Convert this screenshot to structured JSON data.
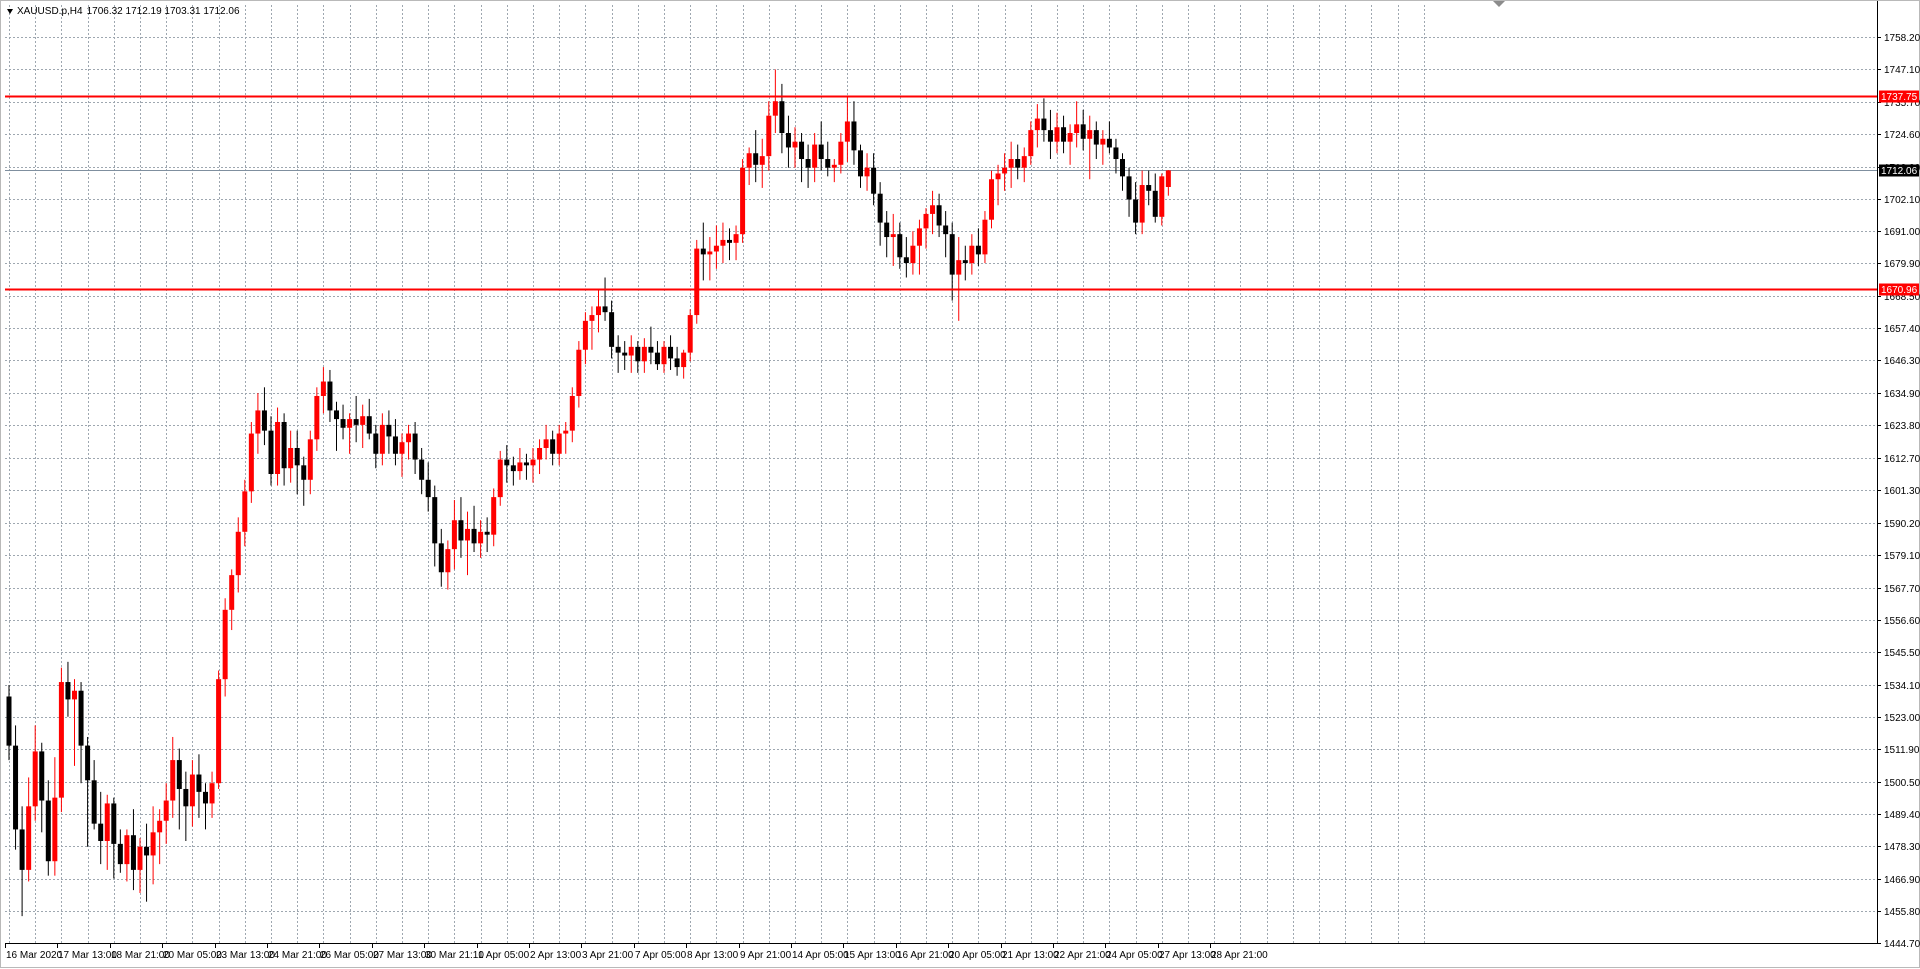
{
  "header": {
    "symbol": "XAUUSD.p,H4",
    "ohlc": "1706.32 1712.19 1703.31 1712.06"
  },
  "colors": {
    "background": "#ffffff",
    "grid": "#9ea7b0",
    "bull": "#ff0000",
    "bear": "#000000",
    "level_line": "#ff0000",
    "price_line": "#7f8f9f"
  },
  "chart_data": {
    "type": "candlestick",
    "grid": true,
    "ylim": [
      1444.7,
      1769.3
    ],
    "y_ticks": [
      "1758.20",
      "1747.10",
      "1735.70",
      "1724.60",
      "1713.20",
      "1702.10",
      "1691.00",
      "1679.90",
      "1668.50",
      "1657.40",
      "1646.30",
      "1634.90",
      "1623.80",
      "1612.70",
      "1601.30",
      "1590.20",
      "1579.10",
      "1567.70",
      "1556.60",
      "1545.50",
      "1534.10",
      "1523.00",
      "1511.90",
      "1500.50",
      "1489.40",
      "1478.30",
      "1466.90",
      "1455.80",
      "1444.70"
    ],
    "x_ticks": [
      "16 Mar 2020",
      "17 Mar 13:00",
      "18 Mar 21:00",
      "20 Mar 05:00",
      "23 Mar 13:00",
      "24 Mar 21:00",
      "26 Mar 05:00",
      "27 Mar 13:00",
      "30 Mar 21:10",
      "1 Apr 05:00",
      "2 Apr 13:00",
      "3 Apr 21:00",
      "7 Apr 05:00",
      "8 Apr 13:00",
      "9 Apr 21:00",
      "14 Apr 05:00",
      "15 Apr 13:00",
      "16 Apr 21:00",
      "20 Apr 05:00",
      "21 Apr 13:00",
      "22 Apr 21:00",
      "24 Apr 05:00",
      "27 Apr 13:00",
      "28 Apr 21:00"
    ],
    "levels": [
      {
        "price": 1737.75,
        "label": "1737.75",
        "color": "#ff0000"
      },
      {
        "price": 1670.96,
        "label": "1670.96",
        "color": "#ff0000"
      }
    ],
    "current_price": {
      "price": 1712.06,
      "label": "1712.06"
    },
    "candles": [
      [
        1530,
        1534,
        1508,
        1513
      ],
      [
        1513,
        1520,
        1477,
        1484
      ],
      [
        1484,
        1492,
        1454,
        1470
      ],
      [
        1470,
        1502,
        1466,
        1492
      ],
      [
        1492,
        1520,
        1487,
        1511
      ],
      [
        1511,
        1514,
        1483,
        1494
      ],
      [
        1494,
        1501,
        1468,
        1473
      ],
      [
        1473,
        1509,
        1468,
        1495
      ],
      [
        1495,
        1540,
        1490,
        1535
      ],
      [
        1535,
        1542,
        1523,
        1529
      ],
      [
        1529,
        1536,
        1506,
        1532
      ],
      [
        1532,
        1535,
        1500,
        1513
      ],
      [
        1513,
        1516,
        1478,
        1501
      ],
      [
        1501,
        1508,
        1484,
        1486
      ],
      [
        1486,
        1497,
        1472,
        1480
      ],
      [
        1480,
        1496,
        1470,
        1493
      ],
      [
        1493,
        1495,
        1467,
        1479
      ],
      [
        1479,
        1484,
        1469,
        1472
      ],
      [
        1472,
        1484,
        1466,
        1482
      ],
      [
        1482,
        1491,
        1463,
        1470
      ],
      [
        1470,
        1481,
        1462,
        1478
      ],
      [
        1478,
        1486,
        1459,
        1475
      ],
      [
        1475,
        1492,
        1465,
        1483
      ],
      [
        1483,
        1491,
        1472,
        1487
      ],
      [
        1487,
        1500,
        1479,
        1494
      ],
      [
        1494,
        1516,
        1488,
        1508
      ],
      [
        1508,
        1512,
        1484,
        1498
      ],
      [
        1498,
        1504,
        1480,
        1492
      ],
      [
        1492,
        1508,
        1485,
        1503
      ],
      [
        1503,
        1510,
        1488,
        1497
      ],
      [
        1497,
        1500,
        1484,
        1493
      ],
      [
        1493,
        1504,
        1488,
        1500
      ],
      [
        1500,
        1539,
        1498,
        1536
      ],
      [
        1536,
        1564,
        1530,
        1560
      ],
      [
        1560,
        1574,
        1553,
        1572
      ],
      [
        1572,
        1592,
        1566,
        1587
      ],
      [
        1587,
        1605,
        1582,
        1601
      ],
      [
        1601,
        1625,
        1597,
        1621
      ],
      [
        1621,
        1635,
        1614,
        1629
      ],
      [
        1629,
        1637,
        1617,
        1622
      ],
      [
        1622,
        1627,
        1603,
        1607
      ],
      [
        1607,
        1630,
        1603,
        1625
      ],
      [
        1625,
        1628,
        1603,
        1609
      ],
      [
        1609,
        1622,
        1604,
        1616
      ],
      [
        1616,
        1622,
        1600,
        1610
      ],
      [
        1610,
        1613,
        1596,
        1605
      ],
      [
        1605,
        1622,
        1600,
        1619
      ],
      [
        1619,
        1637,
        1615,
        1634
      ],
      [
        1634,
        1644,
        1628,
        1639
      ],
      [
        1639,
        1643,
        1625,
        1629
      ],
      [
        1629,
        1632,
        1615,
        1626
      ],
      [
        1626,
        1631,
        1619,
        1623
      ],
      [
        1623,
        1628,
        1614,
        1626
      ],
      [
        1626,
        1634,
        1618,
        1624
      ],
      [
        1624,
        1631,
        1616,
        1627
      ],
      [
        1627,
        1633,
        1619,
        1621
      ],
      [
        1621,
        1624,
        1609,
        1614
      ],
      [
        1614,
        1628,
        1610,
        1624
      ],
      [
        1624,
        1629,
        1614,
        1620
      ],
      [
        1620,
        1626,
        1610,
        1614
      ],
      [
        1614,
        1621,
        1606,
        1618
      ],
      [
        1618,
        1624,
        1612,
        1621
      ],
      [
        1621,
        1625,
        1607,
        1612
      ],
      [
        1612,
        1616,
        1600,
        1605
      ],
      [
        1605,
        1611,
        1594,
        1599
      ],
      [
        1599,
        1603,
        1575,
        1583
      ],
      [
        1583,
        1588,
        1568,
        1573
      ],
      [
        1573,
        1584,
        1567,
        1581
      ],
      [
        1581,
        1598,
        1574,
        1591
      ],
      [
        1591,
        1599,
        1578,
        1584
      ],
      [
        1584,
        1594,
        1572,
        1588
      ],
      [
        1588,
        1596,
        1580,
        1583
      ],
      [
        1583,
        1591,
        1578,
        1587
      ],
      [
        1587,
        1592,
        1580,
        1586
      ],
      [
        1586,
        1602,
        1582,
        1599
      ],
      [
        1599,
        1615,
        1596,
        1612
      ],
      [
        1612,
        1617,
        1604,
        1610
      ],
      [
        1610,
        1613,
        1603,
        1608
      ],
      [
        1608,
        1616,
        1605,
        1611
      ],
      [
        1611,
        1614,
        1605,
        1610
      ],
      [
        1610,
        1616,
        1604,
        1612
      ],
      [
        1612,
        1619,
        1607,
        1616
      ],
      [
        1616,
        1624,
        1612,
        1619
      ],
      [
        1619,
        1622,
        1610,
        1614
      ],
      [
        1614,
        1624,
        1610,
        1621
      ],
      [
        1621,
        1625,
        1614,
        1622
      ],
      [
        1622,
        1637,
        1618,
        1634
      ],
      [
        1634,
        1653,
        1630,
        1650
      ],
      [
        1650,
        1663,
        1645,
        1660
      ],
      [
        1660,
        1665,
        1650,
        1662
      ],
      [
        1662,
        1671,
        1656,
        1665
      ],
      [
        1665,
        1675,
        1660,
        1663
      ],
      [
        1663,
        1667,
        1647,
        1651
      ],
      [
        1651,
        1655,
        1642,
        1649
      ],
      [
        1649,
        1653,
        1643,
        1648
      ],
      [
        1648,
        1655,
        1642,
        1651
      ],
      [
        1651,
        1653,
        1642,
        1646
      ],
      [
        1646,
        1654,
        1642,
        1651
      ],
      [
        1651,
        1658,
        1645,
        1649
      ],
      [
        1649,
        1653,
        1643,
        1645
      ],
      [
        1645,
        1653,
        1642,
        1651
      ],
      [
        1651,
        1655,
        1643,
        1647
      ],
      [
        1647,
        1651,
        1641,
        1644
      ],
      [
        1644,
        1650,
        1640,
        1649
      ],
      [
        1649,
        1664,
        1646,
        1662
      ],
      [
        1662,
        1688,
        1659,
        1685
      ],
      [
        1685,
        1694,
        1674,
        1683
      ],
      [
        1683,
        1689,
        1674,
        1684
      ],
      [
        1684,
        1693,
        1678,
        1686
      ],
      [
        1686,
        1694,
        1680,
        1688
      ],
      [
        1688,
        1692,
        1681,
        1687
      ],
      [
        1687,
        1693,
        1681,
        1690
      ],
      [
        1690,
        1716,
        1687,
        1713
      ],
      [
        1713,
        1720,
        1707,
        1718
      ],
      [
        1718,
        1726,
        1708,
        1714
      ],
      [
        1714,
        1723,
        1706,
        1717
      ],
      [
        1717,
        1736,
        1712,
        1731
      ],
      [
        1731,
        1747,
        1725,
        1736
      ],
      [
        1736,
        1742,
        1718,
        1725
      ],
      [
        1725,
        1731,
        1713,
        1720
      ],
      [
        1720,
        1727,
        1713,
        1722
      ],
      [
        1722,
        1725,
        1708,
        1716
      ],
      [
        1716,
        1721,
        1706,
        1713
      ],
      [
        1713,
        1725,
        1708,
        1721
      ],
      [
        1721,
        1729,
        1712,
        1716
      ],
      [
        1716,
        1722,
        1710,
        1713
      ],
      [
        1713,
        1716,
        1708,
        1714
      ],
      [
        1714,
        1725,
        1711,
        1722
      ],
      [
        1722,
        1738,
        1715,
        1729
      ],
      [
        1729,
        1736,
        1714,
        1719
      ],
      [
        1719,
        1721,
        1706,
        1710
      ],
      [
        1710,
        1718,
        1705,
        1713
      ],
      [
        1713,
        1718,
        1700,
        1704
      ],
      [
        1704,
        1708,
        1686,
        1694
      ],
      [
        1694,
        1698,
        1682,
        1689
      ],
      [
        1689,
        1697,
        1679,
        1690
      ],
      [
        1690,
        1694,
        1678,
        1682
      ],
      [
        1682,
        1689,
        1675,
        1680
      ],
      [
        1680,
        1691,
        1676,
        1686
      ],
      [
        1686,
        1695,
        1676,
        1692
      ],
      [
        1692,
        1699,
        1685,
        1697
      ],
      [
        1697,
        1705,
        1690,
        1700
      ],
      [
        1700,
        1704,
        1689,
        1693
      ],
      [
        1693,
        1698,
        1682,
        1690
      ],
      [
        1690,
        1694,
        1667,
        1676
      ],
      [
        1676,
        1689,
        1660,
        1681
      ],
      [
        1681,
        1686,
        1674,
        1680
      ],
      [
        1680,
        1690,
        1676,
        1686
      ],
      [
        1686,
        1692,
        1679,
        1683
      ],
      [
        1683,
        1698,
        1680,
        1695
      ],
      [
        1695,
        1712,
        1692,
        1709
      ],
      [
        1709,
        1714,
        1700,
        1711
      ],
      [
        1711,
        1718,
        1705,
        1713
      ],
      [
        1713,
        1722,
        1706,
        1716
      ],
      [
        1716,
        1721,
        1709,
        1713
      ],
      [
        1713,
        1720,
        1708,
        1717
      ],
      [
        1717,
        1729,
        1714,
        1726
      ],
      [
        1726,
        1735,
        1720,
        1730
      ],
      [
        1730,
        1737,
        1722,
        1726
      ],
      [
        1726,
        1733,
        1716,
        1722
      ],
      [
        1722,
        1732,
        1718,
        1727
      ],
      [
        1727,
        1731,
        1718,
        1722
      ],
      [
        1722,
        1728,
        1714,
        1725
      ],
      [
        1725,
        1736,
        1720,
        1728
      ],
      [
        1728,
        1733,
        1719,
        1723
      ],
      [
        1723,
        1731,
        1709,
        1726
      ],
      [
        1726,
        1729,
        1716,
        1721
      ],
      [
        1721,
        1726,
        1714,
        1723
      ],
      [
        1723,
        1729,
        1718,
        1720
      ],
      [
        1720,
        1723,
        1711,
        1716
      ],
      [
        1716,
        1718,
        1705,
        1710
      ],
      [
        1710,
        1713,
        1696,
        1702
      ],
      [
        1702,
        1708,
        1690,
        1694
      ],
      [
        1694,
        1712,
        1690,
        1707
      ],
      [
        1707,
        1712,
        1700,
        1705
      ],
      [
        1705,
        1711,
        1694,
        1696
      ],
      [
        1696,
        1711,
        1693,
        1710
      ],
      [
        1706.32,
        1712.19,
        1703.31,
        1712.06
      ]
    ]
  }
}
